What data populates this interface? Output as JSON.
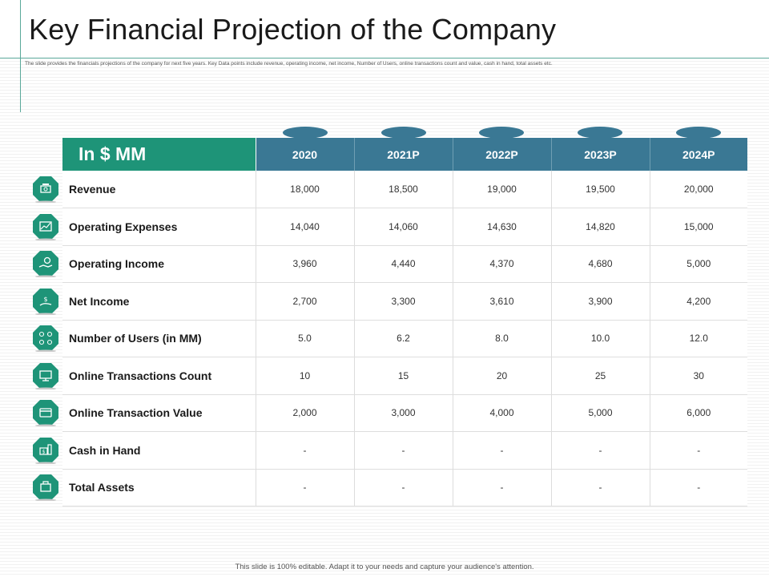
{
  "title": "Key Financial Projection of the Company",
  "subtitle": "The slide provides the financials projections of the company for next five years. Key Data points include revenue, operating income, net income, Number of Users, online transactions count and value, cash in hand, total assets etc.",
  "table": {
    "corner_label": "In $ MM",
    "years": [
      "2020",
      "2021P",
      "2022P",
      "2023P",
      "2024P"
    ],
    "rows": [
      {
        "label": "Revenue",
        "icon": "money-stack-icon",
        "values": [
          "18,000",
          "18,500",
          "19,000",
          "19,500",
          "20,000"
        ]
      },
      {
        "label": "Operating Expenses",
        "icon": "expense-chart-icon",
        "values": [
          "14,040",
          "14,060",
          "14,630",
          "14,820",
          "15,000"
        ]
      },
      {
        "label": "Operating Income",
        "icon": "hand-coin-icon",
        "values": [
          "3,960",
          "4,440",
          "4,370",
          "4,680",
          "5,000"
        ]
      },
      {
        "label": "Net Income",
        "icon": "hand-dollar-icon",
        "values": [
          "2,700",
          "3,300",
          "3,610",
          "3,900",
          "4,200"
        ]
      },
      {
        "label": "Number of Users (in MM)",
        "icon": "users-network-icon",
        "values": [
          "5.0",
          "6.2",
          "8.0",
          "10.0",
          "12.0"
        ]
      },
      {
        "label": "Online Transactions Count",
        "icon": "monitor-icon",
        "values": [
          "10",
          "15",
          "20",
          "25",
          "30"
        ]
      },
      {
        "label": "Online Transaction Value",
        "icon": "credit-card-icon",
        "values": [
          "2,000",
          "3,000",
          "4,000",
          "5,000",
          "6,000"
        ]
      },
      {
        "label": "Cash in Hand",
        "icon": "cash-icon",
        "values": [
          "-",
          "-",
          "-",
          "-",
          "-"
        ]
      },
      {
        "label": "Total Assets",
        "icon": "assets-icon",
        "values": [
          "-",
          "-",
          "-",
          "-",
          "-"
        ]
      }
    ]
  },
  "colors": {
    "header_label_bg": "#1e9478",
    "header_year_bg": "#3a7894",
    "icon_bg": "#1e9478"
  },
  "footer": "This slide is 100% editable. Adapt it to your needs and capture your audience's attention."
}
